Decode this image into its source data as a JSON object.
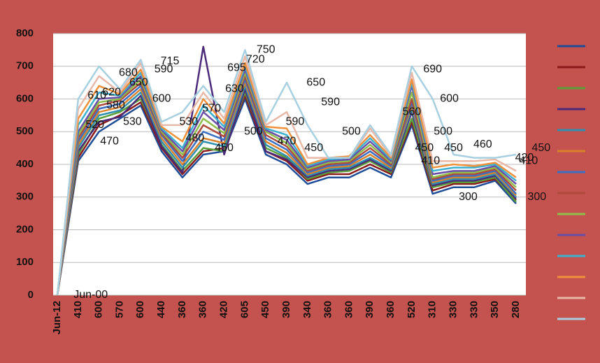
{
  "chart_data": {
    "type": "line",
    "categories": [
      "Jun-12",
      "410",
      "600",
      "570",
      "600",
      "440",
      "360",
      "360",
      "420",
      "605",
      "450",
      "390",
      "340",
      "360",
      "360",
      "390",
      "360",
      "520",
      "310",
      "330",
      "330",
      "350",
      "280"
    ],
    "ylim": [
      0,
      800
    ],
    "yticks": [
      0,
      100,
      200,
      300,
      400,
      500,
      600,
      700,
      800
    ],
    "grid": true,
    "series": [
      {
        "color": "#1f4e99",
        "values": [
          0,
          410,
          500,
          540,
          580,
          440,
          360,
          430,
          440,
          600,
          430,
          400,
          340,
          360,
          360,
          390,
          360,
          520,
          310,
          330,
          330,
          350,
          280
        ]
      },
      {
        "color": "#8b1a1a",
        "values": [
          0,
          420,
          520,
          550,
          590,
          450,
          370,
          440,
          450,
          610,
          440,
          410,
          350,
          370,
          370,
          400,
          370,
          530,
          320,
          340,
          340,
          355,
          290
        ]
      },
      {
        "color": "#5a9e3a",
        "values": [
          0,
          430,
          540,
          560,
          600,
          460,
          380,
          450,
          440,
          620,
          450,
          420,
          355,
          375,
          380,
          410,
          375,
          540,
          330,
          345,
          345,
          360,
          285
        ]
      },
      {
        "color": "#4b2a7a",
        "values": [
          0,
          440,
          530,
          545,
          610,
          455,
          375,
          760,
          430,
          630,
          440,
          415,
          360,
          380,
          385,
          415,
          380,
          560,
          335,
          350,
          350,
          365,
          295
        ]
      },
      {
        "color": "#2e8fb0",
        "values": [
          0,
          450,
          550,
          565,
          620,
          470,
          390,
          470,
          455,
          640,
          460,
          425,
          365,
          385,
          390,
          420,
          385,
          570,
          340,
          355,
          355,
          370,
          300
        ]
      },
      {
        "color": "#d9822b",
        "values": [
          0,
          460,
          560,
          575,
          630,
          480,
          400,
          480,
          465,
          650,
          470,
          435,
          370,
          390,
          395,
          430,
          390,
          580,
          345,
          360,
          360,
          375,
          305
        ]
      },
      {
        "color": "#3a6fc4",
        "values": [
          0,
          470,
          570,
          585,
          640,
          490,
          410,
          500,
          475,
          660,
          480,
          445,
          375,
          395,
          400,
          440,
          395,
          590,
          350,
          365,
          365,
          380,
          310
        ]
      },
      {
        "color": "#b04a3c",
        "values": [
          0,
          480,
          580,
          595,
          650,
          495,
          420,
          520,
          485,
          670,
          490,
          455,
          380,
          400,
          405,
          450,
          400,
          600,
          355,
          370,
          370,
          385,
          320
        ]
      },
      {
        "color": "#8fbf4a",
        "values": [
          0,
          490,
          590,
          600,
          660,
          500,
          430,
          540,
          495,
          680,
          500,
          465,
          385,
          405,
          410,
          460,
          405,
          620,
          360,
          375,
          375,
          390,
          330
        ]
      },
      {
        "color": "#6a4fa8",
        "values": [
          0,
          500,
          600,
          605,
          670,
          505,
          440,
          560,
          505,
          690,
          505,
          475,
          390,
          410,
          415,
          470,
          410,
          640,
          370,
          380,
          380,
          395,
          340
        ]
      },
      {
        "color": "#3bb0cf",
        "values": [
          0,
          520,
          620,
          610,
          680,
          510,
          450,
          580,
          515,
          700,
          510,
          490,
          395,
          415,
          420,
          480,
          415,
          650,
          380,
          390,
          390,
          400,
          350
        ]
      },
      {
        "color": "#f0903a",
        "values": [
          0,
          540,
          640,
          615,
          690,
          515,
          470,
          600,
          525,
          710,
          515,
          510,
          400,
          420,
          425,
          490,
          420,
          660,
          390,
          400,
          395,
          405,
          360
        ]
      },
      {
        "color": "#e8b8a8",
        "values": [
          0,
          570,
          670,
          620,
          710,
          520,
          520,
          620,
          540,
          730,
          520,
          560,
          420,
          420,
          420,
          510,
          425,
          680,
          410,
          410,
          410,
          415,
          380
        ]
      },
      {
        "color": "#a8d0e0",
        "values": [
          0,
          600,
          700,
          630,
          720,
          530,
          560,
          640,
          560,
          750,
          530,
          650,
          520,
          420,
          420,
          520,
          430,
          700,
          600,
          430,
          420,
          420,
          430
        ]
      }
    ],
    "legend": "right",
    "annotations": [
      {
        "text": "Jun-00",
        "at": 1.6,
        "y": 0
      },
      {
        "text": "520",
        "at": 1.8,
        "y": 520
      },
      {
        "text": "470",
        "at": 2.5,
        "y": 470
      },
      {
        "text": "610",
        "at": 1.9,
        "y": 610
      },
      {
        "text": "620",
        "at": 2.6,
        "y": 620
      },
      {
        "text": "580",
        "at": 2.8,
        "y": 580
      },
      {
        "text": "530",
        "at": 3.6,
        "y": 530
      },
      {
        "text": "680",
        "at": 3.4,
        "y": 680
      },
      {
        "text": "650",
        "at": 3.9,
        "y": 650
      },
      {
        "text": "715",
        "at": 5.4,
        "y": 715
      },
      {
        "text": "590",
        "at": 5.1,
        "y": 690
      },
      {
        "text": "600",
        "at": 5.0,
        "y": 600
      },
      {
        "text": "530",
        "at": 6.3,
        "y": 530
      },
      {
        "text": "480",
        "at": 6.6,
        "y": 480
      },
      {
        "text": "570",
        "at": 7.4,
        "y": 570
      },
      {
        "text": "450",
        "at": 8.0,
        "y": 450
      },
      {
        "text": "630",
        "at": 8.5,
        "y": 630
      },
      {
        "text": "695",
        "at": 8.6,
        "y": 695
      },
      {
        "text": "720",
        "at": 9.5,
        "y": 720
      },
      {
        "text": "750",
        "at": 10.0,
        "y": 750
      },
      {
        "text": "500",
        "at": 9.4,
        "y": 500
      },
      {
        "text": "470",
        "at": 11.0,
        "y": 470
      },
      {
        "text": "590",
        "at": 11.4,
        "y": 530
      },
      {
        "text": "650",
        "at": 12.4,
        "y": 650
      },
      {
        "text": "590",
        "at": 13.1,
        "y": 590
      },
      {
        "text": "450",
        "at": 12.3,
        "y": 450
      },
      {
        "text": "500",
        "at": 14.1,
        "y": 500
      },
      {
        "text": "560",
        "at": 17.0,
        "y": 560
      },
      {
        "text": "450",
        "at": 17.6,
        "y": 450
      },
      {
        "text": "690",
        "at": 18.0,
        "y": 690
      },
      {
        "text": "600",
        "at": 18.8,
        "y": 600
      },
      {
        "text": "500",
        "at": 18.5,
        "y": 500
      },
      {
        "text": "410",
        "at": 17.9,
        "y": 410
      },
      {
        "text": "450",
        "at": 19.0,
        "y": 450
      },
      {
        "text": "460",
        "at": 20.4,
        "y": 460
      },
      {
        "text": "300",
        "at": 19.7,
        "y": 300
      },
      {
        "text": "420",
        "at": 22.4,
        "y": 420
      },
      {
        "text": "450",
        "at": 23.2,
        "y": 450
      },
      {
        "text": "410",
        "at": 22.6,
        "y": 410
      },
      {
        "text": "300",
        "at": 23.0,
        "y": 300
      }
    ]
  }
}
